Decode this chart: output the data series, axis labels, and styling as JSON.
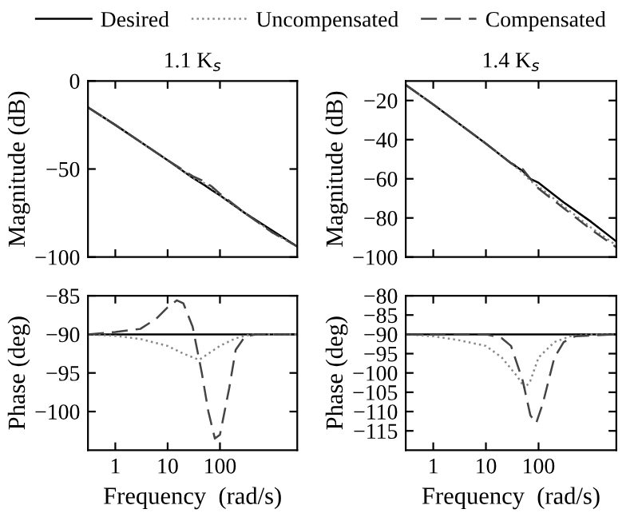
{
  "chart_data": [
    {
      "type": "line",
      "title": "1.1 K$_{s}$",
      "ylabel": "Magnitude (dB)",
      "log": "x",
      "xlim": [
        0.3,
        3000
      ],
      "xticks": [
        1,
        10,
        100
      ],
      "ylim": [
        -100,
        0
      ],
      "yticks": [
        -100,
        -50,
        0
      ],
      "tick_labels": "y",
      "legend": "top",
      "grid": false,
      "series": [
        {
          "name": "Desired",
          "color": "#000000",
          "line_style": "solid",
          "x": [
            0.3,
            1,
            10,
            30,
            50,
            70,
            100,
            300,
            1000,
            3000
          ],
          "values": [
            -15,
            -25,
            -45,
            -55,
            -59,
            -62,
            -65,
            -75,
            -85,
            -94
          ]
        },
        {
          "name": "Uncompensated",
          "color": "#888888",
          "line_style": "dotted",
          "x": [
            0.3,
            1,
            10,
            30,
            50,
            70,
            100,
            300,
            1000,
            3000
          ],
          "values": [
            -15,
            -25,
            -45,
            -55,
            -58,
            -61,
            -65,
            -75,
            -86,
            -94
          ]
        },
        {
          "name": "Compensated",
          "color": "#444444",
          "line_style": "dashed",
          "x": [
            0.3,
            1,
            10,
            30,
            50,
            70,
            100,
            300,
            1000,
            3000
          ],
          "values": [
            -15,
            -25,
            -45,
            -54,
            -57,
            -60,
            -64,
            -75,
            -86,
            -94
          ]
        }
      ]
    },
    {
      "type": "line",
      "title": "1.4 K$_{s}$",
      "ylabel": "Magnitude (dB)",
      "log": "x",
      "xlim": [
        0.3,
        3000
      ],
      "xticks": [
        1,
        10,
        100
      ],
      "ylim": [
        -100,
        -10
      ],
      "yticks": [
        -100,
        -80,
        -60,
        -40,
        -20
      ],
      "tick_labels": "y",
      "grid": false,
      "series": [
        {
          "color": "#000000",
          "line_style": "solid",
          "x": [
            0.3,
            1,
            10,
            30,
            50,
            70,
            100,
            300,
            1000,
            3000
          ],
          "values": [
            -12,
            -22,
            -42,
            -52,
            -56,
            -60,
            -62,
            -72,
            -82,
            -92
          ]
        },
        {
          "color": "#888888",
          "line_style": "dotted",
          "x": [
            0.3,
            1,
            10,
            30,
            50,
            70,
            100,
            300,
            1000,
            3000
          ],
          "values": [
            -12,
            -22,
            -42,
            -52,
            -57,
            -61,
            -64,
            -74,
            -85,
            -94
          ]
        },
        {
          "color": "#444444",
          "line_style": "dashed",
          "x": [
            0.3,
            1,
            10,
            30,
            50,
            70,
            100,
            300,
            1000,
            3000
          ],
          "values": [
            -12,
            -22,
            -42,
            -52,
            -55,
            -60,
            -65,
            -75,
            -86,
            -95
          ]
        }
      ]
    },
    {
      "type": "line",
      "xlabel": "Frequency  (rad/s)",
      "ylabel": "Phase (deg)",
      "log": "x",
      "xlim": [
        0.3,
        3000
      ],
      "xticks": [
        1,
        10,
        100
      ],
      "ylim": [
        -105,
        -85
      ],
      "yticks": [
        -100,
        -95,
        -90,
        -85
      ],
      "grid": false,
      "series": [
        {
          "color": "#000000",
          "line_style": "solid",
          "x": [
            0.3,
            3000
          ],
          "values": [
            -90,
            -90
          ]
        },
        {
          "color": "#888888",
          "line_style": "dotted",
          "x": [
            0.3,
            1,
            3,
            10,
            20,
            40,
            60,
            100,
            200,
            400,
            3000
          ],
          "values": [
            -90,
            -90.2,
            -90.6,
            -91.5,
            -92.5,
            -93.3,
            -92.5,
            -91.5,
            -90.5,
            -90,
            -90
          ]
        },
        {
          "color": "#444444",
          "line_style": "dashed",
          "x": [
            0.3,
            1,
            3,
            6,
            10,
            15,
            20,
            30,
            45,
            60,
            80,
            100,
            150,
            200,
            300,
            500,
            3000
          ],
          "values": [
            -90,
            -89.7,
            -89.3,
            -88,
            -86.5,
            -85.6,
            -86,
            -89,
            -95,
            -100,
            -103.5,
            -103,
            -97,
            -92,
            -90.3,
            -90,
            -90
          ]
        }
      ]
    },
    {
      "type": "line",
      "xlabel": "Frequency  (rad/s)",
      "ylabel": "Phase (deg)",
      "log": "x",
      "xlim": [
        0.3,
        3000
      ],
      "xticks": [
        1,
        10,
        100
      ],
      "ylim": [
        -120,
        -80
      ],
      "yticks": [
        -115,
        -110,
        -105,
        -100,
        -95,
        -90,
        -85,
        -80
      ],
      "grid": false,
      "series": [
        {
          "color": "#000000",
          "line_style": "solid",
          "x": [
            0.3,
            3000
          ],
          "values": [
            -90,
            -90
          ]
        },
        {
          "color": "#888888",
          "line_style": "dotted",
          "x": [
            0.3,
            1,
            3,
            10,
            20,
            40,
            55,
            70,
            100,
            200,
            400,
            1000,
            3000
          ],
          "values": [
            -90,
            -90.5,
            -91.5,
            -93,
            -96,
            -101,
            -104,
            -102,
            -96,
            -92,
            -90.5,
            -90,
            -90
          ]
        },
        {
          "color": "#444444",
          "line_style": "dashed",
          "x": [
            0.3,
            10,
            20,
            30,
            50,
            70,
            90,
            120,
            200,
            300,
            500,
            3000
          ],
          "values": [
            -90,
            -90,
            -91,
            -93,
            -102,
            -111,
            -113,
            -108,
            -96,
            -92,
            -90.5,
            -90
          ]
        }
      ]
    }
  ]
}
